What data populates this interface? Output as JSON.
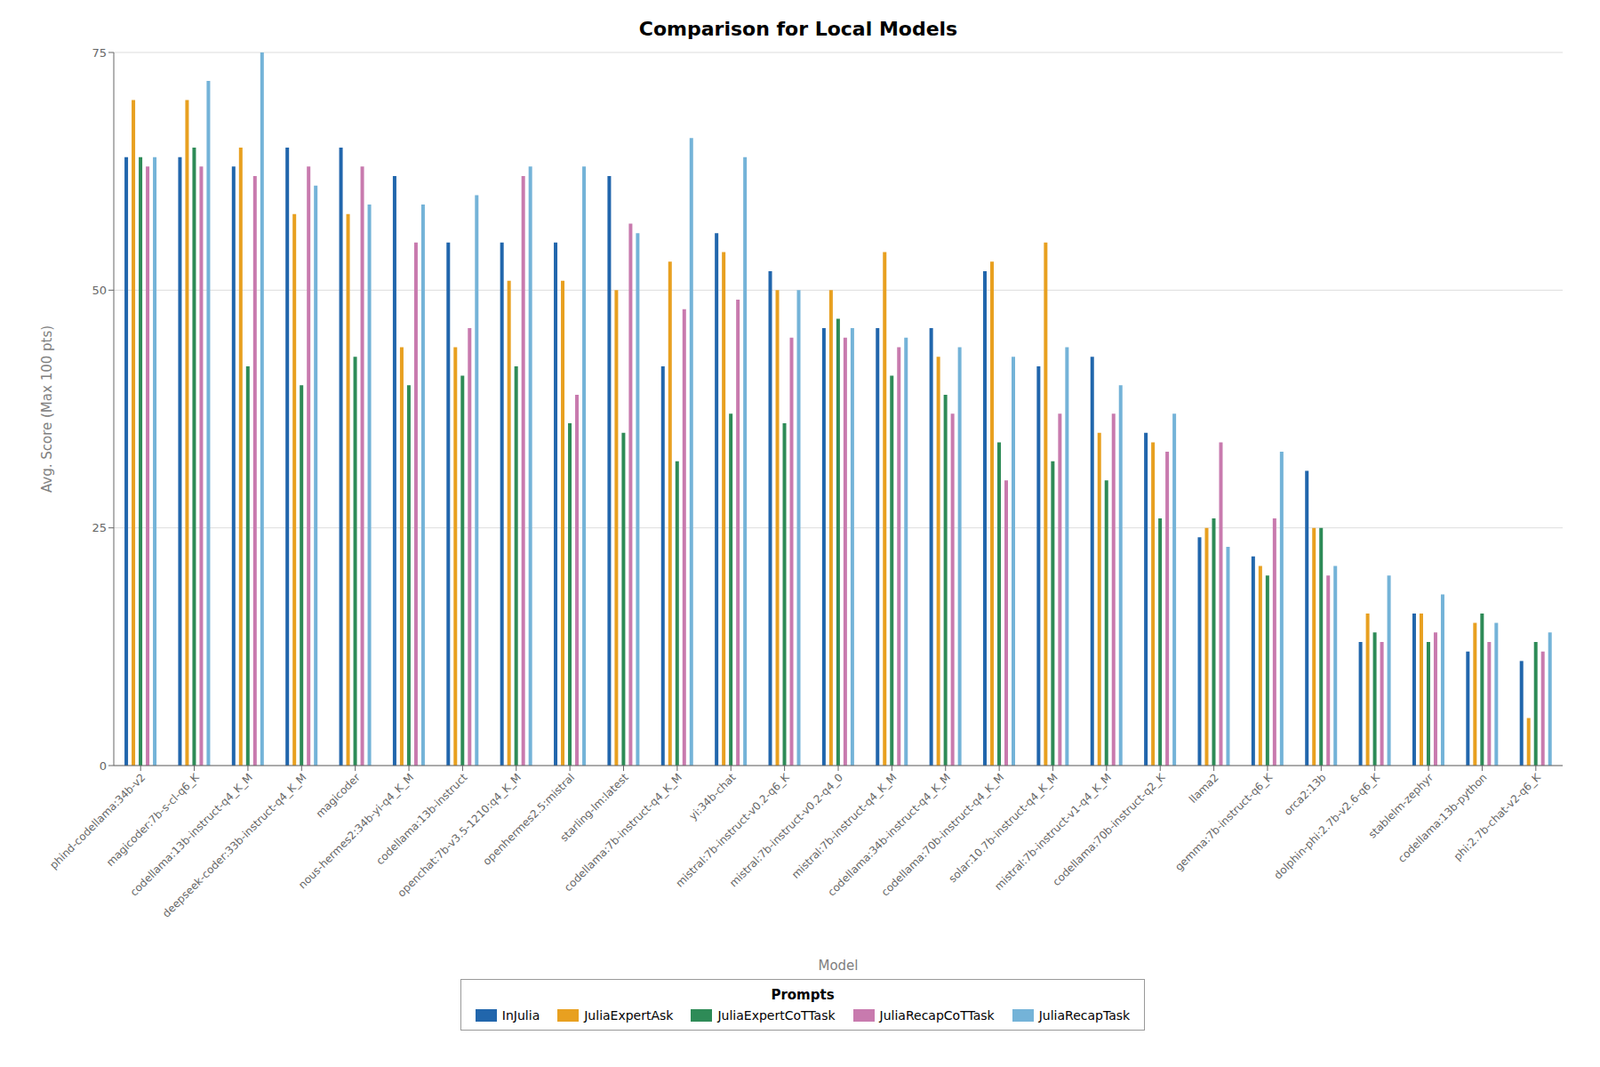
{
  "chart_data": {
    "type": "bar",
    "title": "Comparison for Local Models",
    "xlabel": "Model",
    "ylabel": "Avg. Score (Max 100 pts)",
    "legend_title": "Prompts",
    "legend": "bottom",
    "grid": true,
    "ylim": [
      0,
      75
    ],
    "yticks": [
      0,
      25,
      50,
      75
    ],
    "categories": [
      "phind-codellama:34b-v2",
      "magicoder:7b-s-cl-q6_K",
      "codellama:13b-instruct-q4_K_M",
      "deepseek-coder:33b-instruct-q4_K_M",
      "magicoder",
      "nous-hermes2:34b-yi-q4_K_M",
      "codellama:13b-instruct",
      "openchat:7b-v3.5-1210:q4_K_M",
      "openhermes2.5:mistral",
      "starling-lm:latest",
      "codellama:7b-instruct-q4_K_M",
      "yi:34b-chat",
      "mistral:7b-instruct-v0.2-q6_K",
      "mistral:7b-instruct-v0.2-q4_0",
      "mistral:7b-instruct-q4_K_M",
      "codellama:34b-instruct-q4_K_M",
      "codellama:70b-instruct-q4_K_M",
      "solar:10.7b-instruct-q4_K_M",
      "mistral:7b-instruct-v1-q4_K_M",
      "codellama:70b-instruct-q2_K",
      "llama2",
      "gemma:7b-instruct-q6_K",
      "orca2:13b",
      "dolphin-phi:2.7b-v2.6-q6_K",
      "stablelm-zephyr",
      "codellama:13b-python",
      "phi:2.7b-chat-v2-q6_K"
    ],
    "series": [
      {
        "name": "InJulia",
        "color": "#2166AC",
        "values": [
          64,
          64,
          63,
          65,
          65,
          62,
          55,
          55,
          55,
          62,
          42,
          56,
          52,
          46,
          46,
          46,
          52,
          42,
          43,
          35,
          24,
          22,
          31,
          13,
          16,
          12,
          11
        ]
      },
      {
        "name": "JuliaExpertAsk",
        "color": "#E8A020",
        "values": [
          70,
          70,
          65,
          58,
          58,
          44,
          44,
          51,
          51,
          50,
          53,
          54,
          50,
          50,
          54,
          43,
          53,
          55,
          35,
          34,
          25,
          21,
          25,
          16,
          16,
          15,
          5
        ]
      },
      {
        "name": "JuliaExpertCoTTask",
        "color": "#2E8B57",
        "values": [
          64,
          65,
          42,
          40,
          43,
          40,
          41,
          42,
          36,
          35,
          32,
          37,
          36,
          47,
          41,
          39,
          34,
          32,
          30,
          26,
          26,
          20,
          25,
          14,
          13,
          16,
          13
        ]
      },
      {
        "name": "JuliaRecapCoTTask",
        "color": "#C87AAE",
        "values": [
          63,
          63,
          62,
          63,
          63,
          55,
          46,
          62,
          39,
          57,
          48,
          49,
          45,
          45,
          44,
          37,
          30,
          37,
          37,
          33,
          34,
          26,
          20,
          13,
          14,
          13,
          12
        ]
      },
      {
        "name": "JuliaRecapTask",
        "color": "#74B3D8",
        "values": [
          64,
          72,
          75,
          61,
          59,
          59,
          60,
          63,
          63,
          56,
          66,
          64,
          50,
          46,
          45,
          44,
          43,
          44,
          40,
          37,
          23,
          33,
          21,
          20,
          18,
          15,
          14
        ]
      }
    ]
  }
}
